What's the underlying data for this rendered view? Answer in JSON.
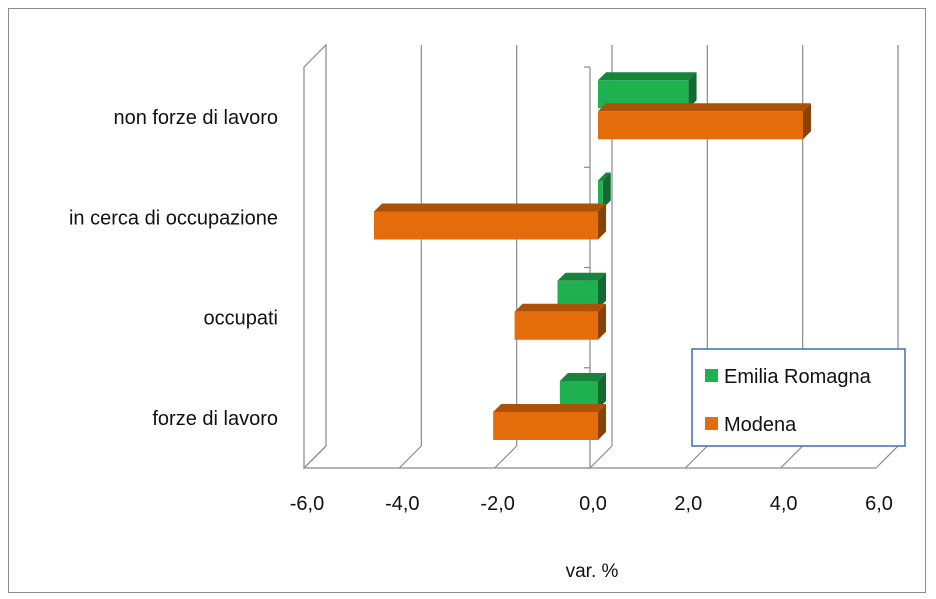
{
  "chart_data": {
    "type": "bar",
    "orientation": "horizontal",
    "categories": [
      "forze di lavoro",
      "occupati",
      "in cerca di occupazione",
      "non forze di lavoro"
    ],
    "series": [
      {
        "name": "Emilia Romagna",
        "values": [
          -0.8,
          -0.85,
          0.1,
          1.9
        ],
        "color": "#1fb050"
      },
      {
        "name": "Modena",
        "values": [
          -2.2,
          -1.75,
          -4.7,
          4.3
        ],
        "color": "#e46c0a"
      }
    ],
    "xlabel": "var. %",
    "xlim": [
      -6,
      6
    ],
    "xticks": [
      "-6,0",
      "-4,0",
      "-2,0",
      "0,0",
      "2,0",
      "4,0",
      "6,0"
    ],
    "xtick_values": [
      -6,
      -4,
      -2,
      0,
      2,
      4,
      6
    ],
    "grid": true,
    "style_3d": true,
    "legend_position": "bottom-right"
  }
}
